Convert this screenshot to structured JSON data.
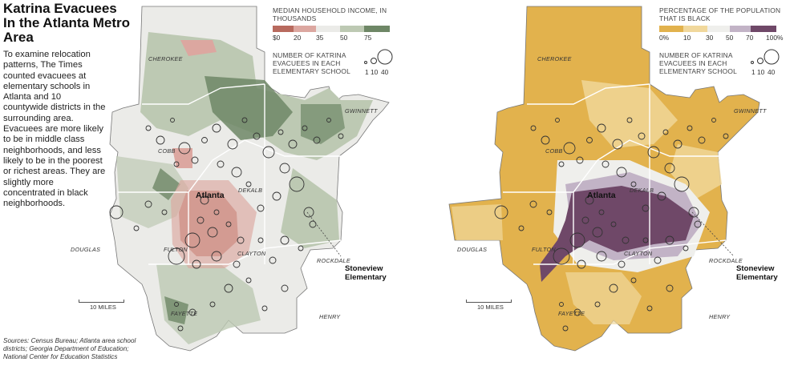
{
  "headline": "Katrina Evacuees In the Atlanta Metro Area",
  "intro": "To examine relocation patterns, The Times counted evacuees at elementary schools in Atlanta and 10 countywide districts in the surrounding area. Evacuees are more likely to be in middle class neighborhoods, and less likely to be in the poorest or richest areas. They are slightly more concentrated in black neighborhoods.",
  "sources": "Sources: Census Bureau; Atlanta area school districts; Georgia Department of Education; National Center for Education Statistics",
  "left_map": {
    "legend_title": "MEDIAN HOUSEHOLD INCOME, IN THOUSANDS",
    "legend_ticks": [
      "$0",
      "20",
      "35",
      "50",
      "75"
    ],
    "legend_colors": [
      "#b86a5e",
      "#dca7a0",
      "#ebebe8",
      "#bdc9b3",
      "#6e8766"
    ],
    "evacuee_legend_title": "NUMBER OF KATRINA EVACUEES IN EACH ELEMENTARY SCHOOL",
    "evacuee_ticks": [
      "1",
      "10",
      "40"
    ],
    "scale_label": "10 MILES",
    "counties": [
      "CHEROKEE",
      "GWINNETT",
      "COBB",
      "DEKALB",
      "DOUGLAS",
      "FULTON",
      "CLAYTON",
      "ROCKDALE",
      "FAYETTE",
      "HENRY"
    ],
    "city": "Atlanta",
    "callout": "Stoneview Elementary"
  },
  "right_map": {
    "legend_title": "PERCENTAGE OF THE POPULATION THAT IS BLACK",
    "legend_ticks": [
      "0%",
      "10",
      "30",
      "50",
      "70",
      "100%"
    ],
    "legend_colors": [
      "#e2b24d",
      "#f1d89c",
      "#efefec",
      "#c2b3c6",
      "#6f4868"
    ],
    "evacuee_legend_title": "NUMBER OF KATRINA EVACUEES IN EACH ELEMENTARY SCHOOL",
    "evacuee_ticks": [
      "1",
      "10",
      "40"
    ],
    "scale_label": "10 MILES",
    "counties": [
      "CHEROKEE",
      "GWINNETT",
      "COBB",
      "DEKALB",
      "DOUGLAS",
      "FULTON",
      "CLAYTON",
      "ROCKDALE",
      "FAYETTE",
      "HENRY"
    ],
    "city": "Atlanta",
    "callout": "Stoneview Elementary"
  }
}
